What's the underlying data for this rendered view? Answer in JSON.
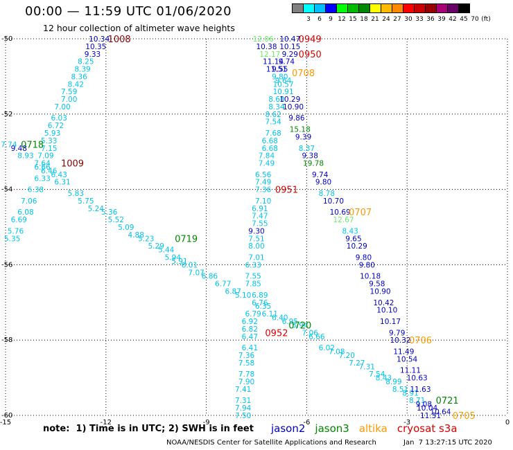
{
  "header": {
    "title": "00:00 — 11:59 UTC 01/06/2020",
    "subtitle": "12 hour collection of altimeter wave heights"
  },
  "color_legend": {
    "unit": "(ft)",
    "labels": [
      "3",
      "6",
      "9",
      "12",
      "15",
      "18",
      "21",
      "24",
      "27",
      "30",
      "33",
      "36",
      "39",
      "42",
      "45",
      "70"
    ],
    "colors": [
      "#808080",
      "#00ffff",
      "#00bfff",
      "#0000ff",
      "#00ff00",
      "#00bb00",
      "#008800",
      "#ffff00",
      "#ffbb00",
      "#ff8800",
      "#ff0000",
      "#cc0000",
      "#990000",
      "#aa0077",
      "#660066",
      "#000000"
    ]
  },
  "axes": {
    "x_ticks": [
      "-15",
      "-12",
      "-9",
      "-6",
      "-3",
      "0"
    ],
    "y_ticks": [
      "-50",
      "-52",
      "-54",
      "-56",
      "-58",
      "-60"
    ]
  },
  "chart_data": {
    "type": "scatter",
    "xlim": [
      -15,
      0
    ],
    "ylim": [
      -60,
      -50
    ],
    "grid": true,
    "category_colors": {
      "cyan": "#00c4ee",
      "blue": "#0000c8",
      "green": "#008800",
      "light-green": "#66ee66",
      "red": "#dd0000",
      "dark-red": "#8b0000",
      "orange": "#ff9900"
    },
    "readings": [
      {
        "text": "10.34",
        "x": -12.2,
        "y": -50.0,
        "c": "blue"
      },
      {
        "text": "10.35",
        "x": -12.3,
        "y": -50.2,
        "c": "blue"
      },
      {
        "text": "9.33",
        "x": -12.4,
        "y": -50.4,
        "c": "blue"
      },
      {
        "text": "8.25",
        "x": -12.6,
        "y": -50.6,
        "c": "cyan"
      },
      {
        "text": "8.39",
        "x": -12.7,
        "y": -50.8,
        "c": "cyan"
      },
      {
        "text": "8.36",
        "x": -12.8,
        "y": -51.0,
        "c": "cyan"
      },
      {
        "text": "8.42",
        "x": -12.9,
        "y": -51.2,
        "c": "cyan"
      },
      {
        "text": "7.59",
        "x": -13.1,
        "y": -51.4,
        "c": "cyan"
      },
      {
        "text": "7.00",
        "x": -13.1,
        "y": -51.6,
        "c": "cyan"
      },
      {
        "text": "7.00",
        "x": -13.3,
        "y": -51.8,
        "c": "cyan"
      },
      {
        "text": "6.03",
        "x": -13.4,
        "y": -52.1,
        "c": "cyan"
      },
      {
        "text": "6.72",
        "x": -13.5,
        "y": -52.3,
        "c": "cyan"
      },
      {
        "text": "5.93",
        "x": -13.6,
        "y": -52.5,
        "c": "cyan"
      },
      {
        "text": "5.33",
        "x": -13.7,
        "y": -52.7,
        "c": "cyan"
      },
      {
        "text": "7.15",
        "x": -13.7,
        "y": -52.9,
        "c": "cyan"
      },
      {
        "text": "7.09",
        "x": -13.8,
        "y": -53.1,
        "c": "cyan"
      },
      {
        "text": "7.64",
        "x": -13.9,
        "y": -53.3,
        "c": "cyan"
      },
      {
        "text": "6.66",
        "x": -13.9,
        "y": -53.4,
        "c": "cyan"
      },
      {
        "text": "6.46",
        "x": -13.7,
        "y": -53.5,
        "c": "cyan"
      },
      {
        "text": "6.43",
        "x": -13.4,
        "y": -53.6,
        "c": "cyan"
      },
      {
        "text": "6.33",
        "x": -13.9,
        "y": -53.7,
        "c": "cyan"
      },
      {
        "text": "6.31",
        "x": -13.3,
        "y": -53.8,
        "c": "cyan"
      },
      {
        "text": "6.38",
        "x": -14.1,
        "y": -54.0,
        "c": "cyan"
      },
      {
        "text": "5.83",
        "x": -12.9,
        "y": -54.1,
        "c": "cyan"
      },
      {
        "text": "7.06",
        "x": -14.3,
        "y": -54.3,
        "c": "cyan"
      },
      {
        "text": "5.75",
        "x": -12.6,
        "y": -54.3,
        "c": "cyan"
      },
      {
        "text": "5.24",
        "x": -12.3,
        "y": -54.5,
        "c": "cyan"
      },
      {
        "text": "6.08",
        "x": -14.4,
        "y": -54.6,
        "c": "cyan"
      },
      {
        "text": "5.36",
        "x": -11.9,
        "y": -54.6,
        "c": "cyan"
      },
      {
        "text": "6.69",
        "x": -14.6,
        "y": -54.8,
        "c": "cyan"
      },
      {
        "text": "5.52",
        "x": -11.7,
        "y": -54.8,
        "c": "cyan"
      },
      {
        "text": "5.09",
        "x": -11.4,
        "y": -55.0,
        "c": "cyan"
      },
      {
        "text": "5.76",
        "x": -14.7,
        "y": -55.1,
        "c": "cyan"
      },
      {
        "text": "4.88",
        "x": -11.1,
        "y": -55.2,
        "c": "cyan"
      },
      {
        "text": "5.35",
        "x": -14.8,
        "y": -55.3,
        "c": "cyan"
      },
      {
        "text": "5.23",
        "x": -10.8,
        "y": -55.3,
        "c": "cyan"
      },
      {
        "text": "5.29",
        "x": -10.5,
        "y": -55.5,
        "c": "cyan"
      },
      {
        "text": "5.44",
        "x": -10.2,
        "y": -55.6,
        "c": "cyan"
      },
      {
        "text": "5.94",
        "x": -10.0,
        "y": -55.8,
        "c": "cyan"
      },
      {
        "text": "5.91",
        "x": -9.8,
        "y": -55.9,
        "c": "cyan"
      },
      {
        "text": "6.01",
        "x": -9.5,
        "y": -56.0,
        "c": "cyan"
      },
      {
        "text": "7.07",
        "x": -9.3,
        "y": -56.2,
        "c": "cyan"
      },
      {
        "text": "6.86",
        "x": -8.9,
        "y": -56.3,
        "c": "cyan"
      },
      {
        "text": "6.77",
        "x": -8.5,
        "y": -56.5,
        "c": "cyan"
      },
      {
        "text": "6.87",
        "x": -8.2,
        "y": -56.7,
        "c": "cyan"
      },
      {
        "text": "5.10",
        "x": -7.9,
        "y": -56.8,
        "c": "cyan"
      },
      {
        "text": "6.89",
        "x": -7.4,
        "y": -56.8,
        "c": "cyan"
      },
      {
        "text": "6.76",
        "x": -7.4,
        "y": -57.0,
        "c": "cyan"
      },
      {
        "text": "6.35",
        "x": -7.3,
        "y": -57.1,
        "c": "cyan"
      },
      {
        "text": "6.11",
        "x": -7.1,
        "y": -57.3,
        "c": "cyan"
      },
      {
        "text": "6.40",
        "x": -6.8,
        "y": -57.4,
        "c": "cyan"
      },
      {
        "text": "6.95",
        "x": -6.5,
        "y": -57.5,
        "c": "cyan"
      },
      {
        "text": "5.94",
        "x": -6.2,
        "y": -57.6,
        "c": "cyan"
      },
      {
        "text": "7.06",
        "x": -5.9,
        "y": -57.8,
        "c": "cyan"
      },
      {
        "text": "6.66",
        "x": -5.7,
        "y": -57.9,
        "c": "cyan"
      },
      {
        "text": "6.02",
        "x": -5.4,
        "y": -58.2,
        "c": "cyan"
      },
      {
        "text": "7.08",
        "x": -5.1,
        "y": -58.3,
        "c": "cyan"
      },
      {
        "text": "7.20",
        "x": -4.8,
        "y": -58.4,
        "c": "cyan"
      },
      {
        "text": "7.27",
        "x": -4.5,
        "y": -58.6,
        "c": "cyan"
      },
      {
        "text": "7.31",
        "x": -4.2,
        "y": -58.7,
        "c": "cyan"
      },
      {
        "text": "7.54",
        "x": -3.9,
        "y": -58.9,
        "c": "cyan"
      },
      {
        "text": "8.43",
        "x": -3.7,
        "y": -59.0,
        "c": "cyan"
      },
      {
        "text": "8.99",
        "x": -3.4,
        "y": -59.1,
        "c": "cyan"
      },
      {
        "text": "8.51",
        "x": -3.2,
        "y": -59.3,
        "c": "cyan"
      },
      {
        "text": "8.91",
        "x": -2.9,
        "y": -59.4,
        "c": "cyan"
      },
      {
        "text": "8.71",
        "x": -2.7,
        "y": -59.6,
        "c": "cyan"
      },
      {
        "text": "9.08",
        "x": -2.5,
        "y": -59.7,
        "c": "blue"
      },
      {
        "text": "10.04",
        "x": -2.4,
        "y": -59.8,
        "c": "blue"
      },
      {
        "text": "10.64",
        "x": -2.0,
        "y": -59.9,
        "c": "blue"
      },
      {
        "text": "11.31",
        "x": -2.3,
        "y": -60.0,
        "c": "blue"
      },
      {
        "text": "9.48",
        "x": -14.6,
        "y": -52.9,
        "c": "blue"
      },
      {
        "text": "7.74",
        "x": -14.9,
        "y": -52.8,
        "c": "cyan"
      },
      {
        "text": "8.93",
        "x": -14.4,
        "y": -53.1,
        "c": "cyan"
      },
      {
        "text": "12.06",
        "x": -7.3,
        "y": -50.0,
        "c": "light-green"
      },
      {
        "text": "10.47",
        "x": -6.5,
        "y": -50.0,
        "c": "blue"
      },
      {
        "text": "10.38",
        "x": -7.2,
        "y": -50.2,
        "c": "blue"
      },
      {
        "text": "10.15",
        "x": -6.5,
        "y": -50.2,
        "c": "blue"
      },
      {
        "text": "12.17",
        "x": -7.1,
        "y": -50.4,
        "c": "light-green"
      },
      {
        "text": "9.29",
        "x": -6.5,
        "y": -50.4,
        "c": "blue"
      },
      {
        "text": "11.14",
        "x": -7.0,
        "y": -50.6,
        "c": "blue"
      },
      {
        "text": "9.74",
        "x": -6.6,
        "y": -50.6,
        "c": "blue"
      },
      {
        "text": "11.51",
        "x": -6.9,
        "y": -50.8,
        "c": "blue"
      },
      {
        "text": "9.55",
        "x": -6.8,
        "y": -50.8,
        "c": "blue"
      },
      {
        "text": "9.80",
        "x": -6.8,
        "y": -51.0,
        "c": "cyan"
      },
      {
        "text": "9.64",
        "x": -6.7,
        "y": -51.1,
        "c": "cyan"
      },
      {
        "text": "10.57",
        "x": -6.7,
        "y": -51.2,
        "c": "cyan"
      },
      {
        "text": "10.91",
        "x": -6.7,
        "y": -51.4,
        "c": "cyan"
      },
      {
        "text": "8.60",
        "x": -6.9,
        "y": -51.6,
        "c": "cyan"
      },
      {
        "text": "10.29",
        "x": -6.5,
        "y": -51.6,
        "c": "blue"
      },
      {
        "text": "8.34",
        "x": -6.9,
        "y": -51.8,
        "c": "cyan"
      },
      {
        "text": "10.90",
        "x": -6.4,
        "y": -51.8,
        "c": "blue"
      },
      {
        "text": "8.62",
        "x": -7.0,
        "y": -52.0,
        "c": "cyan"
      },
      {
        "text": "9.86",
        "x": -6.3,
        "y": -52.1,
        "c": "blue"
      },
      {
        "text": "7.54",
        "x": -7.0,
        "y": -52.2,
        "c": "cyan"
      },
      {
        "text": "15.18",
        "x": -6.2,
        "y": -52.4,
        "c": "green"
      },
      {
        "text": "7.68",
        "x": -7.0,
        "y": -52.5,
        "c": "cyan"
      },
      {
        "text": "9.39",
        "x": -6.1,
        "y": -52.6,
        "c": "blue"
      },
      {
        "text": "6.68",
        "x": -7.1,
        "y": -52.7,
        "c": "cyan"
      },
      {
        "text": "8.37",
        "x": -6.0,
        "y": -52.9,
        "c": "cyan"
      },
      {
        "text": "6.68",
        "x": -7.1,
        "y": -52.9,
        "c": "cyan"
      },
      {
        "text": "9.38",
        "x": -5.9,
        "y": -53.1,
        "c": "blue"
      },
      {
        "text": "7.84",
        "x": -7.2,
        "y": -53.1,
        "c": "cyan"
      },
      {
        "text": "19.78",
        "x": -5.8,
        "y": -53.3,
        "c": "green"
      },
      {
        "text": "7.49",
        "x": -7.2,
        "y": -53.3,
        "c": "cyan"
      },
      {
        "text": "9.74",
        "x": -5.6,
        "y": -53.6,
        "c": "blue"
      },
      {
        "text": "6.56",
        "x": -7.3,
        "y": -53.6,
        "c": "cyan"
      },
      {
        "text": "9.80",
        "x": -5.5,
        "y": -53.8,
        "c": "blue"
      },
      {
        "text": "7.49",
        "x": -7.3,
        "y": -53.8,
        "c": "cyan"
      },
      {
        "text": "8.78",
        "x": -5.4,
        "y": -54.1,
        "c": "cyan"
      },
      {
        "text": "7.36",
        "x": -7.3,
        "y": -54.0,
        "c": "cyan"
      },
      {
        "text": "7.10",
        "x": -7.3,
        "y": -54.3,
        "c": "cyan"
      },
      {
        "text": "10.70",
        "x": -5.2,
        "y": -54.3,
        "c": "blue"
      },
      {
        "text": "6.91",
        "x": -7.4,
        "y": -54.5,
        "c": "cyan"
      },
      {
        "text": "10.69",
        "x": -5.0,
        "y": -54.6,
        "c": "blue"
      },
      {
        "text": "7.47",
        "x": -7.4,
        "y": -54.7,
        "c": "cyan"
      },
      {
        "text": "12.67",
        "x": -4.9,
        "y": -54.8,
        "c": "light-green"
      },
      {
        "text": "7.55",
        "x": -7.4,
        "y": -54.9,
        "c": "cyan"
      },
      {
        "text": "8.43",
        "x": -4.7,
        "y": -55.1,
        "c": "cyan"
      },
      {
        "text": "9.30",
        "x": -7.5,
        "y": -55.1,
        "c": "blue"
      },
      {
        "text": "9.65",
        "x": -4.6,
        "y": -55.3,
        "c": "blue"
      },
      {
        "text": "7.51",
        "x": -7.5,
        "y": -55.3,
        "c": "cyan"
      },
      {
        "text": "10.29",
        "x": -4.5,
        "y": -55.5,
        "c": "blue"
      },
      {
        "text": "8.00",
        "x": -7.5,
        "y": -55.5,
        "c": "cyan"
      },
      {
        "text": "9.80",
        "x": -4.3,
        "y": -55.8,
        "c": "blue"
      },
      {
        "text": "7.01",
        "x": -7.5,
        "y": -55.8,
        "c": "cyan"
      },
      {
        "text": "9.80",
        "x": -4.2,
        "y": -56.0,
        "c": "blue"
      },
      {
        "text": "6.33",
        "x": -7.6,
        "y": -56.0,
        "c": "cyan"
      },
      {
        "text": "10.18",
        "x": -4.1,
        "y": -56.3,
        "c": "blue"
      },
      {
        "text": "7.55",
        "x": -7.6,
        "y": -56.3,
        "c": "cyan"
      },
      {
        "text": "9.58",
        "x": -3.9,
        "y": -56.5,
        "c": "blue"
      },
      {
        "text": "7.85",
        "x": -7.6,
        "y": -56.5,
        "c": "cyan"
      },
      {
        "text": "10.90",
        "x": -3.8,
        "y": -56.7,
        "c": "blue"
      },
      {
        "text": "10.42",
        "x": -3.7,
        "y": -57.0,
        "c": "blue"
      },
      {
        "text": "6.79",
        "x": -7.6,
        "y": -57.3,
        "c": "cyan"
      },
      {
        "text": "10.10",
        "x": -3.6,
        "y": -57.2,
        "c": "blue"
      },
      {
        "text": "6.92",
        "x": -7.7,
        "y": -57.5,
        "c": "cyan"
      },
      {
        "text": "10.17",
        "x": -3.5,
        "y": -57.5,
        "c": "blue"
      },
      {
        "text": "6.82",
        "x": -7.7,
        "y": -57.7,
        "c": "cyan"
      },
      {
        "text": "9.79",
        "x": -3.3,
        "y": -57.8,
        "c": "blue"
      },
      {
        "text": "6.47",
        "x": -7.7,
        "y": -57.9,
        "c": "cyan"
      },
      {
        "text": "10.32",
        "x": -3.2,
        "y": -58.0,
        "c": "blue"
      },
      {
        "text": "6.41",
        "x": -7.7,
        "y": -58.2,
        "c": "cyan"
      },
      {
        "text": "11.49",
        "x": -3.1,
        "y": -58.3,
        "c": "blue"
      },
      {
        "text": "7.36",
        "x": -7.8,
        "y": -58.4,
        "c": "cyan"
      },
      {
        "text": "10.54",
        "x": -3.0,
        "y": -58.5,
        "c": "blue"
      },
      {
        "text": "7.58",
        "x": -7.8,
        "y": -58.6,
        "c": "cyan"
      },
      {
        "text": "11.11",
        "x": -2.9,
        "y": -58.8,
        "c": "blue"
      },
      {
        "text": "7.78",
        "x": -7.8,
        "y": -58.9,
        "c": "cyan"
      },
      {
        "text": "10.63",
        "x": -2.7,
        "y": -59.0,
        "c": "blue"
      },
      {
        "text": "7.90",
        "x": -7.8,
        "y": -59.1,
        "c": "cyan"
      },
      {
        "text": "11.63",
        "x": -2.6,
        "y": -59.3,
        "c": "blue"
      },
      {
        "text": "7.41",
        "x": -7.9,
        "y": -59.3,
        "c": "cyan"
      },
      {
        "text": "7.31",
        "x": -7.9,
        "y": -59.6,
        "c": "cyan"
      },
      {
        "text": "7.94",
        "x": -7.9,
        "y": -59.8,
        "c": "cyan"
      },
      {
        "text": "7.50",
        "x": -7.9,
        "y": -60.0,
        "c": "cyan"
      }
    ],
    "time_stamps": [
      {
        "text": "1008",
        "x": -11.6,
        "y": -50.0,
        "c": "dark-red"
      },
      {
        "text": "0718",
        "x": -14.2,
        "y": -52.8,
        "c": "green"
      },
      {
        "text": "1009",
        "x": -13.0,
        "y": -53.3,
        "c": "dark-red"
      },
      {
        "text": "0719",
        "x": -9.6,
        "y": -55.3,
        "c": "green"
      },
      {
        "text": "0949",
        "x": -5.9,
        "y": -50.0,
        "c": "red"
      },
      {
        "text": "0950",
        "x": -5.9,
        "y": -50.4,
        "c": "red"
      },
      {
        "text": "0708",
        "x": -6.1,
        "y": -50.9,
        "c": "orange"
      },
      {
        "text": "0951",
        "x": -6.6,
        "y": -54.0,
        "c": "red"
      },
      {
        "text": "0707",
        "x": -4.4,
        "y": -54.6,
        "c": "orange"
      },
      {
        "text": "0720",
        "x": -6.2,
        "y": -57.6,
        "c": "green"
      },
      {
        "text": "0952",
        "x": -6.9,
        "y": -57.8,
        "c": "red"
      },
      {
        "text": "0706",
        "x": -2.6,
        "y": -58.0,
        "c": "orange"
      },
      {
        "text": "0721",
        "x": -1.8,
        "y": -59.6,
        "c": "green"
      },
      {
        "text": "0705",
        "x": -1.3,
        "y": -60.0,
        "c": "orange"
      }
    ]
  },
  "footer": {
    "note": "note:  1) Time is in UTC; 2) SWH is in feet",
    "satellites": [
      {
        "name": "jason2",
        "color": "#0000cc"
      },
      {
        "name": "jason3",
        "color": "#008800"
      },
      {
        "name": "altika",
        "color": "#ff9900"
      },
      {
        "name": "cryosat s3a",
        "color": "#dd0000"
      }
    ],
    "credit": "NOAA/NESDIS Center for Satellite Applications and Research",
    "timestamp": "Jan  7 13:27:15 UTC 2020"
  }
}
